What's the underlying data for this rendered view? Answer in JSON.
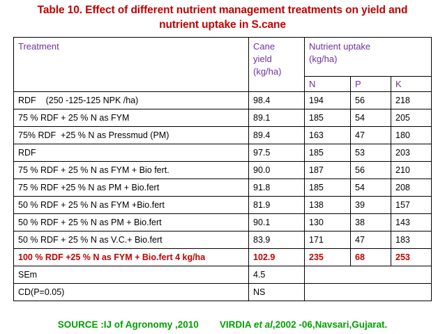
{
  "title": {
    "line1": "Table 10. Effect of  different nutrient management treatments on yield and",
    "line2": "nutrient uptake in S.cane"
  },
  "table": {
    "headers": {
      "treatment": "Treatment",
      "yield_line1": "Cane",
      "yield_line2": "yield",
      "yield_line3": "(kg/ha)",
      "uptake_line1": "Nutrient uptake",
      "uptake_line2": "(kg/ha)",
      "n": "N",
      "p": "P",
      "k": "K"
    },
    "rows": [
      {
        "treatment": "RDF    (250 -125-125 NPK /ha)",
        "yield": "98.4",
        "n": "194",
        "p": "56",
        "k": "218"
      },
      {
        "treatment": "75 % RDF + 25 % N as FYM",
        "yield": "89.1",
        "n": "185",
        "p": "54",
        "k": "205"
      },
      {
        "treatment": "75% RDF  +25 % N as Pressmud (PM)",
        "yield": "89.4",
        "n": "163",
        "p": "47",
        "k": "180"
      },
      {
        "treatment": "RDF",
        "yield": "97.5",
        "n": "185",
        "p": "53",
        "k": "203"
      },
      {
        "treatment": "75 % RDF + 25 % N as FYM + Bio fert.",
        "yield": "90.0",
        "n": "187",
        "p": "56",
        "k": "210"
      },
      {
        "treatment": "75 % RDF +25 % N as PM + Bio.fert",
        "yield": "91.8",
        "n": "185",
        "p": "54",
        "k": "208"
      },
      {
        "treatment": "50 % RDF + 25 % N as FYM +Bio.fert",
        "yield": "81.9",
        "n": "138",
        "p": "39",
        "k": "157"
      },
      {
        "treatment": "50 % RDF + 25 % N as PM + Bio.fert",
        "yield": "90.1",
        "n": "130",
        "p": "38",
        "k": "143"
      },
      {
        "treatment": "50 % RDF + 25 % N as V.C.+ Bio.fert",
        "yield": "83.9",
        "n": "171",
        "p": "47",
        "k": "183"
      },
      {
        "treatment": "100 % RDF +25 % N as FYM + Bio.fert 4 kg/ha",
        "yield": "102.9",
        "n": "235",
        "p": "68",
        "k": "253"
      }
    ],
    "sem": {
      "label": "SEm",
      "value": "4.5"
    },
    "cd": {
      "label": "CD(P=0.05)",
      "value": "NS"
    }
  },
  "source": {
    "part1": "SOURCE :IJ of Agronomy ,2010",
    "author": "VIRDIA ",
    "et_al": "et al",
    "rest": ",2002 -06,Navsari,Gujarat."
  },
  "colors": {
    "title": "#c00000",
    "header": "#7030a0",
    "highlight": "#c00000",
    "source": "#00a000"
  }
}
